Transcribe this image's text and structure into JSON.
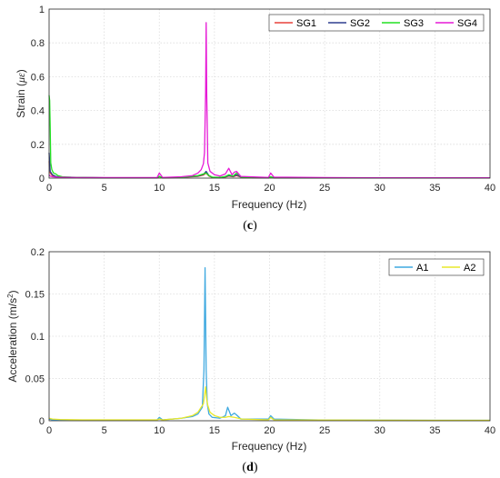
{
  "chart_data": [
    {
      "type": "line",
      "panel_label": "(c)",
      "xlabel": "Frequency (Hz)",
      "ylabel_prefix": "Strain (",
      "ylabel_mu": "με",
      "ylabel_suffix": ")",
      "xlim": [
        0,
        40
      ],
      "ylim": [
        0,
        1
      ],
      "xticks": [
        0,
        5,
        10,
        15,
        20,
        25,
        30,
        35,
        40
      ],
      "yticks": [
        0,
        0.2,
        0.4,
        0.6,
        0.8,
        1
      ],
      "ytick_labels": [
        "0",
        "0.2",
        "0.4",
        "0.6",
        "0.8",
        "1"
      ],
      "grid": true,
      "legend": "top-right",
      "series": [
        {
          "name": "SG1",
          "color": "#e8403a",
          "x": [
            0,
            0.1,
            0.3,
            0.6,
            1,
            2,
            3,
            5,
            9.8,
            10,
            10.3,
            12,
            13.5,
            14,
            14.25,
            14.5,
            14.8,
            15.5,
            16,
            16.3,
            16.7,
            17,
            17.5,
            19.9,
            20.1,
            20.4,
            25,
            30,
            35,
            40
          ],
          "y": [
            0.1,
            0.03,
            0.015,
            0.008,
            0.005,
            0.004,
            0.003,
            0.002,
            0.002,
            0.008,
            0.002,
            0.004,
            0.01,
            0.018,
            0.03,
            0.012,
            0.004,
            0.003,
            0.006,
            0.012,
            0.008,
            0.015,
            0.003,
            0.002,
            0.006,
            0.002,
            0.001,
            0.001,
            0.001,
            0.001
          ]
        },
        {
          "name": "SG2",
          "color": "#2e3f8f",
          "x": [
            0,
            0.1,
            0.3,
            0.6,
            1,
            2,
            3,
            5,
            9.8,
            10,
            10.3,
            12,
            13.5,
            14,
            14.25,
            14.5,
            14.8,
            15.5,
            16,
            16.3,
            16.7,
            17,
            17.5,
            19.9,
            20.1,
            20.4,
            25,
            30,
            35,
            40
          ],
          "y": [
            0.15,
            0.04,
            0.02,
            0.01,
            0.006,
            0.005,
            0.004,
            0.002,
            0.002,
            0.01,
            0.002,
            0.005,
            0.012,
            0.022,
            0.04,
            0.015,
            0.005,
            0.003,
            0.008,
            0.015,
            0.01,
            0.02,
            0.004,
            0.002,
            0.008,
            0.002,
            0.001,
            0.001,
            0.001,
            0.001
          ]
        },
        {
          "name": "SG3",
          "color": "#22e022",
          "x": [
            0,
            0.05,
            0.1,
            0.15,
            0.25,
            0.4,
            0.6,
            0.8,
            1.2,
            2,
            3,
            5,
            9.8,
            10,
            10.3,
            12,
            13.5,
            14,
            14.25,
            14.5,
            14.8,
            15.5,
            16,
            16.3,
            16.7,
            17,
            17.5,
            19.9,
            20.1,
            20.4,
            25,
            30,
            35,
            40
          ],
          "y": [
            0.49,
            0.46,
            0.3,
            0.09,
            0.05,
            0.03,
            0.025,
            0.015,
            0.008,
            0.005,
            0.004,
            0.002,
            0.002,
            0.01,
            0.002,
            0.005,
            0.015,
            0.025,
            0.03,
            0.015,
            0.006,
            0.004,
            0.01,
            0.02,
            0.012,
            0.03,
            0.004,
            0.002,
            0.008,
            0.002,
            0.001,
            0.001,
            0.001,
            0.001
          ]
        },
        {
          "name": "SG4",
          "color": "#e619d6",
          "x": [
            0,
            0.1,
            0.3,
            0.6,
            1,
            2,
            3,
            5,
            9.8,
            10,
            10.3,
            12,
            13,
            13.5,
            13.8,
            14,
            14.1,
            14.2,
            14.25,
            14.3,
            14.4,
            14.6,
            15,
            15.5,
            16,
            16.3,
            16.6,
            16.8,
            17,
            17.4,
            19.9,
            20.1,
            20.4,
            25,
            30,
            35,
            40
          ],
          "y": [
            0.02,
            0.012,
            0.008,
            0.006,
            0.005,
            0.004,
            0.003,
            0.003,
            0.003,
            0.03,
            0.004,
            0.008,
            0.015,
            0.03,
            0.05,
            0.085,
            0.15,
            0.5,
            0.92,
            0.5,
            0.09,
            0.04,
            0.02,
            0.012,
            0.025,
            0.058,
            0.02,
            0.035,
            0.04,
            0.01,
            0.004,
            0.03,
            0.006,
            0.003,
            0.002,
            0.002,
            0.002
          ]
        }
      ]
    },
    {
      "type": "line",
      "panel_label": "(d)",
      "xlabel": "Frequency (Hz)",
      "ylabel_prefix": "Acceleration (m/s",
      "ylabel_sup": "2",
      "ylabel_suffix": ")",
      "xlim": [
        0,
        40
      ],
      "ylim": [
        0,
        0.2
      ],
      "xticks": [
        0,
        5,
        10,
        15,
        20,
        25,
        30,
        35,
        40
      ],
      "yticks": [
        0,
        0.05,
        0.1,
        0.15,
        0.2
      ],
      "ytick_labels": [
        "0",
        "0.05",
        "0.1",
        "0.15",
        "0.2"
      ],
      "grid": true,
      "legend": "top-right",
      "series": [
        {
          "name": "A1",
          "color": "#3fa9e0",
          "x": [
            0,
            0.3,
            1,
            3,
            5,
            9.8,
            10,
            10.3,
            12,
            13,
            13.5,
            13.9,
            14.05,
            14.15,
            14.25,
            14.35,
            14.5,
            14.8,
            15.5,
            16,
            16.2,
            16.5,
            16.8,
            17,
            17.4,
            19.9,
            20.1,
            20.4,
            25,
            30,
            35,
            40
          ],
          "y": [
            0.002,
            0.001,
            0.001,
            0.0008,
            0.0008,
            0.001,
            0.004,
            0.001,
            0.003,
            0.005,
            0.008,
            0.016,
            0.06,
            0.181,
            0.06,
            0.02,
            0.008,
            0.004,
            0.003,
            0.006,
            0.016,
            0.006,
            0.009,
            0.007,
            0.002,
            0.002,
            0.006,
            0.002,
            0.0008,
            0.0006,
            0.0005,
            0.0005
          ]
        },
        {
          "name": "A2",
          "color": "#e8e82a",
          "x": [
            0,
            0.3,
            1,
            3,
            5,
            9.8,
            10,
            10.3,
            12,
            13,
            13.5,
            14,
            14.2,
            14.3,
            14.4,
            14.6,
            15,
            15.5,
            16,
            16.3,
            16.8,
            17.5,
            19.9,
            20.1,
            20.4,
            25,
            30,
            35,
            40
          ],
          "y": [
            0.003,
            0.002,
            0.0015,
            0.001,
            0.001,
            0.001,
            0.002,
            0.001,
            0.003,
            0.006,
            0.01,
            0.02,
            0.04,
            0.025,
            0.018,
            0.01,
            0.006,
            0.004,
            0.004,
            0.005,
            0.004,
            0.002,
            0.001,
            0.004,
            0.001,
            0.0008,
            0.0006,
            0.0005,
            0.0005
          ]
        }
      ]
    }
  ]
}
